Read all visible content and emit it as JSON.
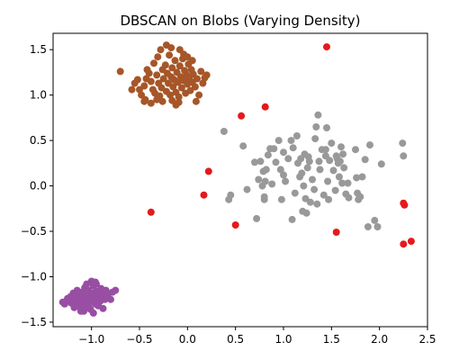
{
  "chart_data": {
    "type": "scatter",
    "title": "DBSCAN on Blobs (Varying Density)",
    "xlabel": "",
    "ylabel": "",
    "xlim": [
      -1.4,
      2.5
    ],
    "ylim": [
      -1.55,
      1.68
    ],
    "xticks": [
      -1.0,
      -0.5,
      0.0,
      0.5,
      1.0,
      1.5,
      2.0,
      2.5
    ],
    "xtick_labels": [
      "−1.0",
      "−0.5",
      "0.0",
      "0.5",
      "1.0",
      "1.5",
      "2.0",
      "2.5"
    ],
    "yticks": [
      -1.5,
      -1.0,
      -0.5,
      0.0,
      0.5,
      1.0,
      1.5
    ],
    "ytick_labels": [
      "−1.5",
      "−1.0",
      "−0.5",
      "0.0",
      "0.5",
      "1.0",
      "1.5"
    ],
    "grid": false,
    "legend": "none",
    "colors": {
      "cluster-brown": "#a65628",
      "cluster-purple": "#984ea3",
      "cluster-grey": "#999999",
      "noise-red": "#e41a1c"
    },
    "series": [
      {
        "color": "#a65628",
        "points": [
          [
            -0.7,
            1.26
          ],
          [
            -0.55,
            1.13
          ],
          [
            -0.52,
            1.17
          ],
          [
            -0.5,
            1.06
          ],
          [
            -0.48,
            1.0
          ],
          [
            -0.45,
            1.1
          ],
          [
            -0.43,
            1.18
          ],
          [
            -0.4,
            1.24
          ],
          [
            -0.38,
            1.15
          ],
          [
            -0.36,
            1.06
          ],
          [
            -0.35,
            1.35
          ],
          [
            -0.34,
            1.02
          ],
          [
            -0.32,
            1.22
          ],
          [
            -0.31,
            1.42
          ],
          [
            -0.3,
            1.13
          ],
          [
            -0.29,
            0.99
          ],
          [
            -0.27,
            1.08
          ],
          [
            -0.26,
            1.28
          ],
          [
            -0.25,
            1.18
          ],
          [
            -0.23,
            1.33
          ],
          [
            -0.22,
            1.04
          ],
          [
            -0.21,
            1.24
          ],
          [
            -0.2,
            1.13
          ],
          [
            -0.19,
            1.44
          ],
          [
            -0.18,
            1.0
          ],
          [
            -0.17,
            1.2
          ],
          [
            -0.16,
            1.3
          ],
          [
            -0.15,
            1.09
          ],
          [
            -0.14,
            1.17
          ],
          [
            -0.13,
            1.38
          ],
          [
            -0.12,
            1.03
          ],
          [
            -0.11,
            1.25
          ],
          [
            -0.1,
            1.14
          ],
          [
            -0.09,
            0.98
          ],
          [
            -0.08,
            1.32
          ],
          [
            -0.07,
            1.2
          ],
          [
            -0.06,
            1.08
          ],
          [
            -0.05,
            1.4
          ],
          [
            -0.04,
            1.16
          ],
          [
            -0.03,
            1.27
          ],
          [
            -0.02,
            1.02
          ],
          [
            -0.01,
            1.22
          ],
          [
            0.0,
            1.12
          ],
          [
            0.01,
            1.34
          ],
          [
            0.02,
            1.18
          ],
          [
            0.03,
            1.05
          ],
          [
            0.04,
            1.28
          ],
          [
            0.05,
            1.14
          ],
          [
            0.06,
            1.23
          ],
          [
            0.08,
            1.09
          ],
          [
            0.1,
            1.18
          ],
          [
            0.12,
            1.0
          ],
          [
            0.14,
            1.26
          ],
          [
            0.16,
            1.13
          ],
          [
            0.18,
            1.19
          ],
          [
            0.2,
            1.22
          ],
          [
            -0.45,
            0.93
          ],
          [
            -0.38,
            0.91
          ],
          [
            -0.26,
            0.93
          ],
          [
            -0.16,
            0.94
          ],
          [
            -0.12,
            0.89
          ],
          [
            -0.08,
            1.5
          ],
          [
            -0.04,
            1.45
          ],
          [
            -0.22,
            1.55
          ],
          [
            -0.17,
            1.52
          ],
          [
            0.09,
            0.93
          ],
          [
            -0.28,
            1.5
          ],
          [
            0.0,
            1.42
          ],
          [
            0.05,
            1.38
          ],
          [
            -0.44,
            0.95
          ],
          [
            -0.32,
            0.95
          ],
          [
            -0.58,
            1.06
          ],
          [
            -0.42,
            1.28
          ],
          [
            -0.09,
            0.92
          ]
        ]
      },
      {
        "color": "#984ea3",
        "points": [
          [
            -1.3,
            -1.28
          ],
          [
            -1.28,
            -1.3
          ],
          [
            -1.26,
            -1.27
          ],
          [
            -1.25,
            -1.24
          ],
          [
            -1.23,
            -1.26
          ],
          [
            -1.22,
            -1.22
          ],
          [
            -1.21,
            -1.29
          ],
          [
            -1.2,
            -1.25
          ],
          [
            -1.19,
            -1.18
          ],
          [
            -1.18,
            -1.34
          ],
          [
            -1.17,
            -1.22
          ],
          [
            -1.16,
            -1.27
          ],
          [
            -1.15,
            -1.15
          ],
          [
            -1.14,
            -1.3
          ],
          [
            -1.13,
            -1.2
          ],
          [
            -1.12,
            -1.25
          ],
          [
            -1.11,
            -1.38
          ],
          [
            -1.1,
            -1.17
          ],
          [
            -1.09,
            -1.23
          ],
          [
            -1.08,
            -1.28
          ],
          [
            -1.07,
            -1.12
          ],
          [
            -1.06,
            -1.2
          ],
          [
            -1.05,
            -1.33
          ],
          [
            -1.04,
            -1.25
          ],
          [
            -1.03,
            -1.15
          ],
          [
            -1.02,
            -1.22
          ],
          [
            -1.01,
            -1.36
          ],
          [
            -1.0,
            -1.18
          ],
          [
            -0.99,
            -1.27
          ],
          [
            -0.98,
            -1.1
          ],
          [
            -0.97,
            -1.22
          ],
          [
            -0.96,
            -1.3
          ],
          [
            -0.95,
            -1.16
          ],
          [
            -0.94,
            -1.24
          ],
          [
            -0.93,
            -1.32
          ],
          [
            -0.92,
            -1.2
          ],
          [
            -0.91,
            -1.27
          ],
          [
            -0.9,
            -1.13
          ],
          [
            -0.89,
            -1.22
          ],
          [
            -0.88,
            -1.35
          ],
          [
            -0.87,
            -1.18
          ],
          [
            -0.86,
            -1.25
          ],
          [
            -0.85,
            -1.15
          ],
          [
            -0.84,
            -1.22
          ],
          [
            -0.83,
            -1.2
          ],
          [
            -0.8,
            -1.25
          ],
          [
            -0.78,
            -1.17
          ],
          [
            -0.75,
            -1.15
          ],
          [
            -1.0,
            -1.05
          ],
          [
            -0.95,
            -1.08
          ],
          [
            -1.05,
            -1.08
          ],
          [
            -0.98,
            -1.4
          ],
          [
            -1.08,
            -1.38
          ],
          [
            -1.03,
            -1.3
          ],
          [
            -0.96,
            -1.06
          ],
          [
            -1.12,
            -1.33
          ],
          [
            -1.18,
            -1.28
          ]
        ]
      },
      {
        "color": "#999999",
        "points": [
          [
            0.38,
            0.6
          ],
          [
            0.43,
            -0.15
          ],
          [
            0.45,
            -0.1
          ],
          [
            0.58,
            0.44
          ],
          [
            0.62,
            -0.04
          ],
          [
            0.7,
            0.26
          ],
          [
            0.72,
            -0.36
          ],
          [
            0.74,
            0.07
          ],
          [
            0.76,
            0.27
          ],
          [
            0.78,
            0.0
          ],
          [
            0.79,
            0.16
          ],
          [
            0.8,
            -0.12
          ],
          [
            0.81,
            0.05
          ],
          [
            0.82,
            0.18
          ],
          [
            0.84,
            0.34
          ],
          [
            0.86,
            0.41
          ],
          [
            0.88,
            0.02
          ],
          [
            0.9,
            0.41
          ],
          [
            0.92,
            0.26
          ],
          [
            0.95,
            0.5
          ],
          [
            0.97,
            0.18
          ],
          [
            0.98,
            -0.15
          ],
          [
            1.0,
            0.37
          ],
          [
            1.02,
            0.05
          ],
          [
            1.05,
            0.3
          ],
          [
            1.08,
            0.5
          ],
          [
            1.1,
            0.42
          ],
          [
            1.12,
            -0.08
          ],
          [
            1.14,
            0.55
          ],
          [
            1.15,
            0.25
          ],
          [
            1.17,
            0.1
          ],
          [
            1.18,
            0.3
          ],
          [
            1.19,
            0.14
          ],
          [
            1.2,
            -0.28
          ],
          [
            1.21,
            0.0
          ],
          [
            1.22,
            0.35
          ],
          [
            1.23,
            -0.14
          ],
          [
            1.24,
            -0.3
          ],
          [
            1.25,
            0.2
          ],
          [
            1.26,
            0.32
          ],
          [
            1.28,
            -0.18
          ],
          [
            1.3,
            0.07
          ],
          [
            1.32,
            -0.04
          ],
          [
            1.33,
            0.52
          ],
          [
            1.34,
            0.65
          ],
          [
            1.35,
            -0.2
          ],
          [
            1.36,
            0.78
          ],
          [
            1.37,
            0.27
          ],
          [
            1.38,
            0.18
          ],
          [
            1.4,
            0.4
          ],
          [
            1.42,
            -0.1
          ],
          [
            1.44,
            0.33
          ],
          [
            1.45,
            0.64
          ],
          [
            1.46,
            0.05
          ],
          [
            1.47,
            -0.15
          ],
          [
            1.48,
            0.28
          ],
          [
            1.5,
            0.47
          ],
          [
            1.52,
            0.17
          ],
          [
            1.54,
            -0.05
          ],
          [
            1.55,
            0.33
          ],
          [
            1.56,
            0.3
          ],
          [
            1.58,
            0.1
          ],
          [
            1.59,
            0.27
          ],
          [
            1.6,
            0.43
          ],
          [
            1.61,
            0.03
          ],
          [
            1.62,
            0.35
          ],
          [
            1.63,
            0.2
          ],
          [
            1.65,
            -0.09
          ],
          [
            1.67,
            0.03
          ],
          [
            1.68,
            -0.13
          ],
          [
            1.75,
            0.4
          ],
          [
            1.76,
            0.09
          ],
          [
            1.77,
            -0.08
          ],
          [
            1.78,
            -0.15
          ],
          [
            1.8,
            -0.12
          ],
          [
            1.82,
            0.1
          ],
          [
            1.85,
            0.29
          ],
          [
            1.88,
            -0.45
          ],
          [
            1.9,
            0.45
          ],
          [
            1.95,
            -0.38
          ],
          [
            1.98,
            -0.45
          ],
          [
            2.02,
            0.24
          ],
          [
            2.24,
            0.47
          ],
          [
            2.25,
            0.33
          ],
          [
            1.09,
            -0.37
          ],
          [
            1.0,
            0.12
          ],
          [
            0.8,
            -0.15
          ],
          [
            1.27,
            0.27
          ],
          [
            1.44,
            0.4
          ],
          [
            1.57,
            0.25
          ]
        ]
      },
      {
        "color": "#e41a1c",
        "points": [
          [
            -0.38,
            -0.29
          ],
          [
            0.17,
            -0.1
          ],
          [
            0.22,
            0.16
          ],
          [
            0.5,
            -0.43
          ],
          [
            0.56,
            0.77
          ],
          [
            0.81,
            0.87
          ],
          [
            1.45,
            1.53
          ],
          [
            1.55,
            -0.51
          ],
          [
            2.25,
            -0.64
          ],
          [
            2.25,
            -0.19
          ],
          [
            2.26,
            -0.21
          ],
          [
            2.33,
            -0.61
          ]
        ]
      }
    ]
  }
}
